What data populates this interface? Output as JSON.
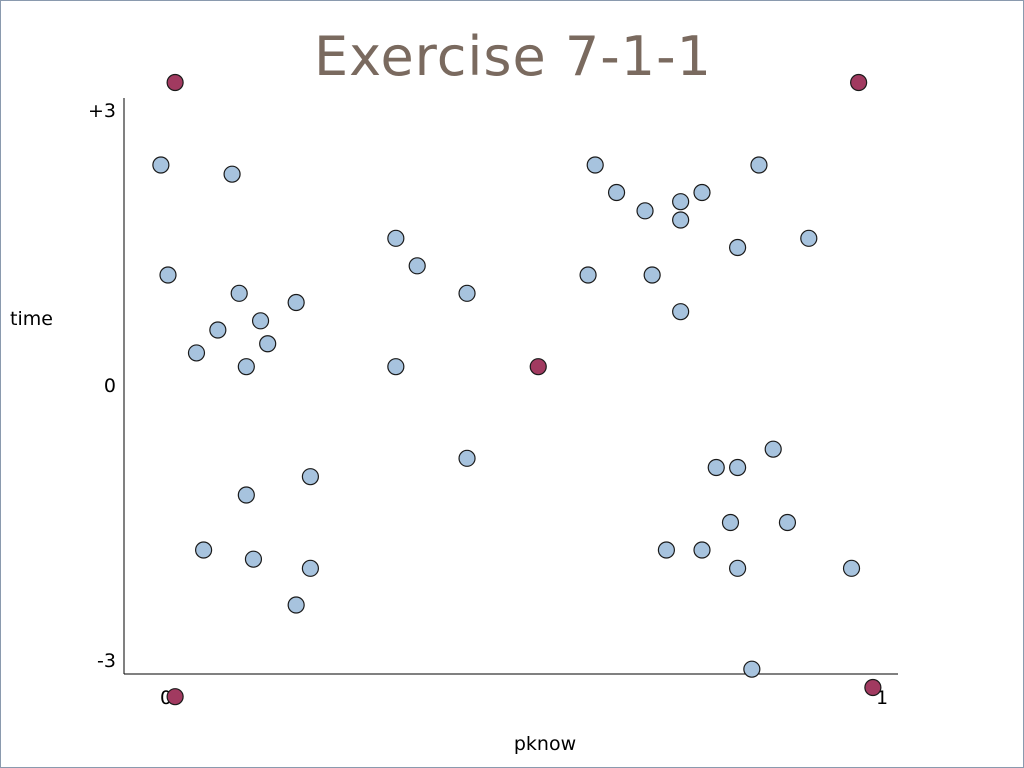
{
  "slide": {
    "title": "Exercise 7-1-1"
  },
  "chart_data": {
    "type": "scatter",
    "title": "Exercise 7-1-1",
    "xlabel": "pknow",
    "ylabel": "time",
    "xlim": [
      0,
      1
    ],
    "ylim": [
      -3,
      3
    ],
    "x_ticks": [
      {
        "value": 0,
        "label": "0"
      },
      {
        "value": 1,
        "label": "1"
      }
    ],
    "y_ticks": [
      {
        "value": 3,
        "label": "+3"
      },
      {
        "value": 0,
        "label": "0"
      },
      {
        "value": -3,
        "label": "-3"
      }
    ],
    "grid": false,
    "colors": {
      "regular": "#a7c3de",
      "highlight": "#a13a60",
      "stroke": "#1a1a1a"
    },
    "series": [
      {
        "kind": "regular",
        "points": [
          {
            "x": -0.01,
            "y": 2.4
          },
          {
            "x": 0.09,
            "y": 2.3
          },
          {
            "x": 0.0,
            "y": 1.2
          },
          {
            "x": 0.1,
            "y": 1.0
          },
          {
            "x": 0.18,
            "y": 0.9
          },
          {
            "x": 0.13,
            "y": 0.7
          },
          {
            "x": 0.07,
            "y": 0.6
          },
          {
            "x": 0.14,
            "y": 0.45
          },
          {
            "x": 0.04,
            "y": 0.35
          },
          {
            "x": 0.11,
            "y": 0.2
          },
          {
            "x": 0.32,
            "y": 1.6
          },
          {
            "x": 0.35,
            "y": 1.3
          },
          {
            "x": 0.42,
            "y": 1.0
          },
          {
            "x": 0.32,
            "y": 0.2
          },
          {
            "x": 0.42,
            "y": -0.8
          },
          {
            "x": 0.2,
            "y": -1.0
          },
          {
            "x": 0.11,
            "y": -1.2
          },
          {
            "x": 0.05,
            "y": -1.8
          },
          {
            "x": 0.12,
            "y": -1.9
          },
          {
            "x": 0.2,
            "y": -2.0
          },
          {
            "x": 0.18,
            "y": -2.4
          },
          {
            "x": 0.6,
            "y": 2.4
          },
          {
            "x": 0.63,
            "y": 2.1
          },
          {
            "x": 0.67,
            "y": 1.9
          },
          {
            "x": 0.72,
            "y": 2.0
          },
          {
            "x": 0.75,
            "y": 2.1
          },
          {
            "x": 0.83,
            "y": 2.4
          },
          {
            "x": 0.72,
            "y": 1.8
          },
          {
            "x": 0.8,
            "y": 1.5
          },
          {
            "x": 0.9,
            "y": 1.6
          },
          {
            "x": 0.59,
            "y": 1.2
          },
          {
            "x": 0.68,
            "y": 1.2
          },
          {
            "x": 0.72,
            "y": 0.8
          },
          {
            "x": 0.85,
            "y": -0.7
          },
          {
            "x": 0.77,
            "y": -0.9
          },
          {
            "x": 0.8,
            "y": -0.9
          },
          {
            "x": 0.79,
            "y": -1.5
          },
          {
            "x": 0.87,
            "y": -1.5
          },
          {
            "x": 0.7,
            "y": -1.8
          },
          {
            "x": 0.75,
            "y": -1.8
          },
          {
            "x": 0.8,
            "y": -2.0
          },
          {
            "x": 0.96,
            "y": -2.0
          },
          {
            "x": 0.82,
            "y": -3.1
          }
        ]
      },
      {
        "kind": "highlight",
        "points": [
          {
            "x": 0.01,
            "y": 3.3
          },
          {
            "x": 0.97,
            "y": 3.3
          },
          {
            "x": 0.52,
            "y": 0.2
          },
          {
            "x": 0.01,
            "y": -3.4
          },
          {
            "x": 0.99,
            "y": -3.3
          }
        ]
      }
    ]
  }
}
